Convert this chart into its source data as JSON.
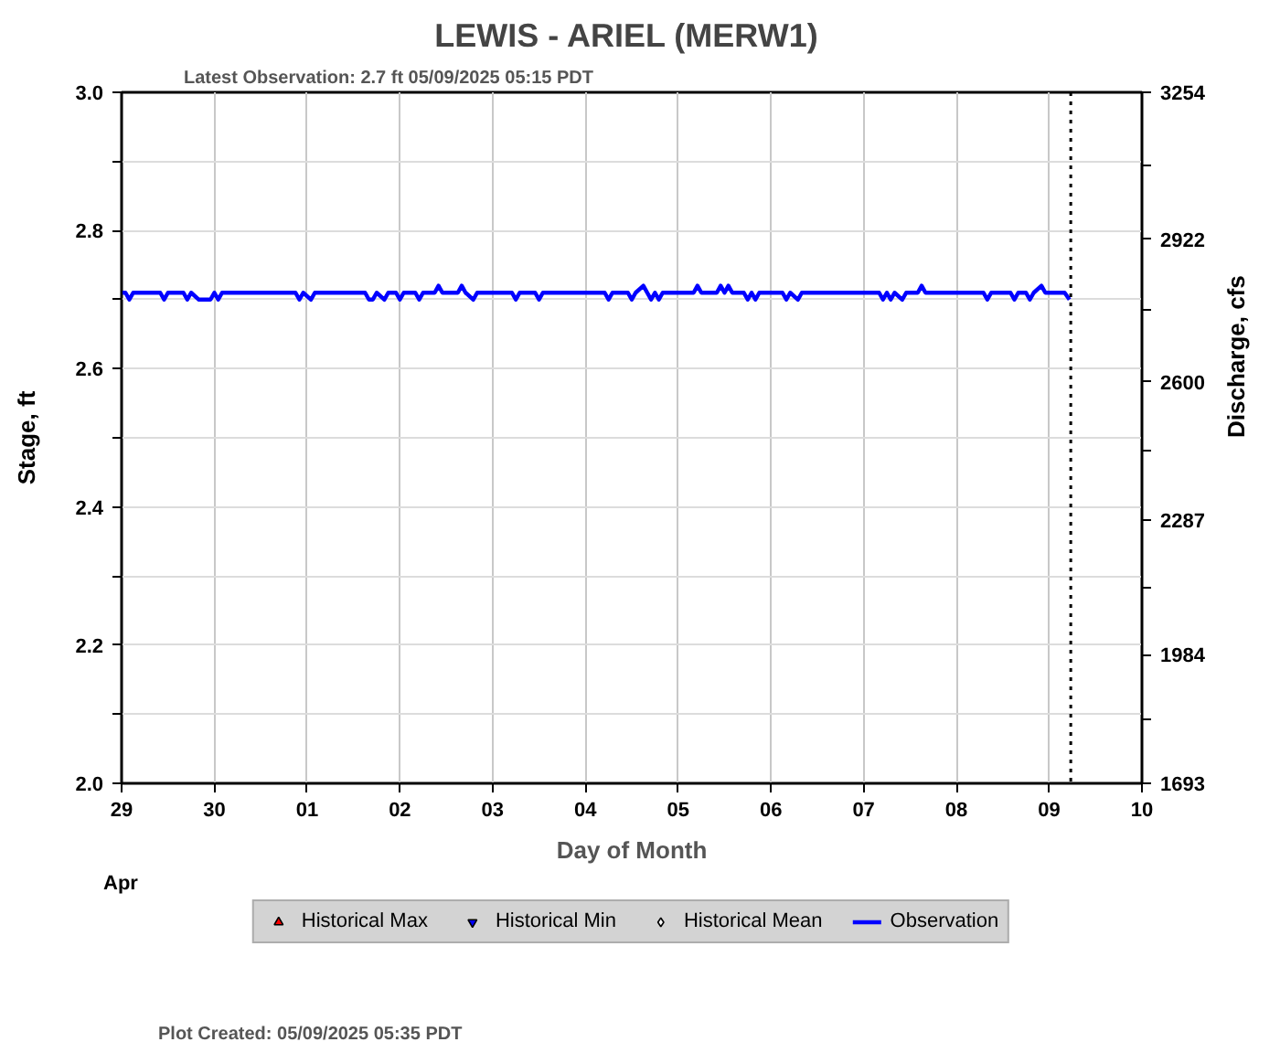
{
  "chart_data": {
    "type": "line",
    "title": "LEWIS - ARIEL  (MERW1)",
    "subtitle": "Latest Observation: 2.7 ft 05/09/2025 05:15 PDT",
    "xlabel": "Day of Month",
    "ylabel": "Stage, ft",
    "y2label": "Discharge, cfs",
    "annotations": [
      "Apr",
      "Plot Created: 05/09/2025 05:35 PDT"
    ],
    "xlim": [
      "2025-04-29",
      "2025-05-10"
    ],
    "xticks": [
      {
        "value": "2025-04-29",
        "label": "29"
      },
      {
        "value": "2025-04-30",
        "label": "30"
      },
      {
        "value": "2025-05-01",
        "label": "01"
      },
      {
        "value": "2025-05-02",
        "label": "02"
      },
      {
        "value": "2025-05-03",
        "label": "03"
      },
      {
        "value": "2025-05-04",
        "label": "04"
      },
      {
        "value": "2025-05-05",
        "label": "05"
      },
      {
        "value": "2025-05-06",
        "label": "06"
      },
      {
        "value": "2025-05-07",
        "label": "07"
      },
      {
        "value": "2025-05-08",
        "label": "08"
      },
      {
        "value": "2025-05-09",
        "label": "09"
      },
      {
        "value": "2025-05-10",
        "label": "10"
      }
    ],
    "ylim": [
      2,
      3
    ],
    "yticks": [
      {
        "value": 2,
        "label": "2.0"
      },
      {
        "value": 2.1,
        "label": null
      },
      2.2,
      {
        "value": 2.3,
        "label": null
      },
      2.4,
      {
        "value": 2.5,
        "label": null
      },
      2.6,
      {
        "value": 2.7,
        "label": null
      },
      2.8,
      {
        "value": 2.9,
        "label": null
      },
      {
        "value": 3,
        "label": "3.0"
      }
    ],
    "y2lim": [
      1693,
      3254
    ],
    "y2ticks": [
      1693,
      {
        "value": 1838,
        "label": null
      },
      1984,
      {
        "value": 2136,
        "label": null
      },
      2287,
      {
        "value": 2444,
        "label": null
      },
      2600,
      {
        "value": 2761,
        "label": null
      },
      2922,
      {
        "value": 3088,
        "label": null
      },
      3254
    ],
    "grid": true,
    "legend": "bottom",
    "line_style": "solid",
    "ref_lines": [
      {
        "axis": "x",
        "value": "2025-05-09T05:35",
        "color": "#000000",
        "line_style": "dotted"
      }
    ],
    "series": [
      {
        "name": "Historical Max",
        "type": "scatter",
        "marker": "triangle",
        "color": "#ff0000"
      },
      {
        "name": "Historical Min",
        "type": "scatter",
        "marker": "inverted_triangle",
        "color": "#0000ff"
      },
      {
        "name": "Historical Mean",
        "type": "scatter",
        "marker": "diamond",
        "color": "#ffffff"
      },
      {
        "name": "Observation",
        "color": "#0000ff",
        "x": [
          "2025-04-29T00:00",
          "2025-04-29T01:00",
          "2025-04-29T02:00",
          "2025-04-29T03:00",
          "2025-04-29T10:00",
          "2025-04-29T11:00",
          "2025-04-29T12:00",
          "2025-04-29T16:00",
          "2025-04-29T17:00",
          "2025-04-29T18:00",
          "2025-04-29T20:00",
          "2025-04-29T23:00",
          "2025-04-30T00:00",
          "2025-04-30T01:00",
          "2025-04-30T02:00",
          "2025-04-30T21:00",
          "2025-04-30T22:00",
          "2025-04-30T23:00",
          "2025-05-01T01:00",
          "2025-05-01T02:00",
          "2025-05-01T15:00",
          "2025-05-01T16:00",
          "2025-05-01T17:00",
          "2025-05-01T18:00",
          "2025-05-01T20:00",
          "2025-05-01T21:00",
          "2025-05-01T23:00",
          "2025-05-02T00:00",
          "2025-05-02T01:00",
          "2025-05-02T04:00",
          "2025-05-02T05:00",
          "2025-05-02T06:00",
          "2025-05-02T09:00",
          "2025-05-02T10:00",
          "2025-05-02T11:00",
          "2025-05-02T15:00",
          "2025-05-02T16:00",
          "2025-05-02T17:00",
          "2025-05-02T19:00",
          "2025-05-02T20:00",
          "2025-05-03T05:00",
          "2025-05-03T06:00",
          "2025-05-03T07:00",
          "2025-05-03T11:00",
          "2025-05-03T12:00",
          "2025-05-03T13:00",
          "2025-05-04T05:00",
          "2025-05-04T06:00",
          "2025-05-04T07:00",
          "2025-05-04T11:00",
          "2025-05-04T12:00",
          "2025-05-04T13:00",
          "2025-05-04T15:00",
          "2025-05-04T16:00",
          "2025-05-04T17:00",
          "2025-05-04T18:00",
          "2025-05-04T19:00",
          "2025-05-04T20:00",
          "2025-05-05T04:00",
          "2025-05-05T05:00",
          "2025-05-05T06:00",
          "2025-05-05T10:00",
          "2025-05-05T11:00",
          "2025-05-05T12:00",
          "2025-05-05T13:00",
          "2025-05-05T14:00",
          "2025-05-05T17:00",
          "2025-05-05T18:00",
          "2025-05-05T19:00",
          "2025-05-05T20:00",
          "2025-05-05T21:00",
          "2025-05-06T03:00",
          "2025-05-06T04:00",
          "2025-05-06T05:00",
          "2025-05-06T07:00",
          "2025-05-06T08:00",
          "2025-05-07T04:00",
          "2025-05-07T05:00",
          "2025-05-07T06:00",
          "2025-05-07T07:00",
          "2025-05-07T08:00",
          "2025-05-07T10:00",
          "2025-05-07T11:00",
          "2025-05-07T14:00",
          "2025-05-07T15:00",
          "2025-05-07T16:00",
          "2025-05-08T07:00",
          "2025-05-08T08:00",
          "2025-05-08T09:00",
          "2025-05-08T14:00",
          "2025-05-08T15:00",
          "2025-05-08T16:00",
          "2025-05-08T18:00",
          "2025-05-08T19:00",
          "2025-05-08T20:00",
          "2025-05-08T22:00",
          "2025-05-08T23:00",
          "2025-05-09T04:00",
          "2025-05-09T05:15"
        ],
        "values": [
          2.71,
          2.71,
          2.7,
          2.71,
          2.71,
          2.7,
          2.71,
          2.71,
          2.7,
          2.71,
          2.7,
          2.7,
          2.71,
          2.7,
          2.71,
          2.71,
          2.7,
          2.71,
          2.7,
          2.71,
          2.71,
          2.7,
          2.7,
          2.71,
          2.7,
          2.71,
          2.71,
          2.7,
          2.71,
          2.71,
          2.7,
          2.71,
          2.71,
          2.72,
          2.71,
          2.71,
          2.72,
          2.71,
          2.7,
          2.71,
          2.71,
          2.7,
          2.71,
          2.71,
          2.7,
          2.71,
          2.71,
          2.7,
          2.71,
          2.71,
          2.7,
          2.71,
          2.72,
          2.71,
          2.7,
          2.71,
          2.7,
          2.71,
          2.71,
          2.72,
          2.71,
          2.71,
          2.72,
          2.71,
          2.72,
          2.71,
          2.71,
          2.7,
          2.71,
          2.7,
          2.71,
          2.71,
          2.7,
          2.71,
          2.7,
          2.71,
          2.71,
          2.7,
          2.71,
          2.7,
          2.71,
          2.7,
          2.71,
          2.71,
          2.72,
          2.71,
          2.71,
          2.7,
          2.71,
          2.71,
          2.7,
          2.71,
          2.71,
          2.7,
          2.71,
          2.72,
          2.71,
          2.71,
          2.7
        ]
      }
    ]
  }
}
